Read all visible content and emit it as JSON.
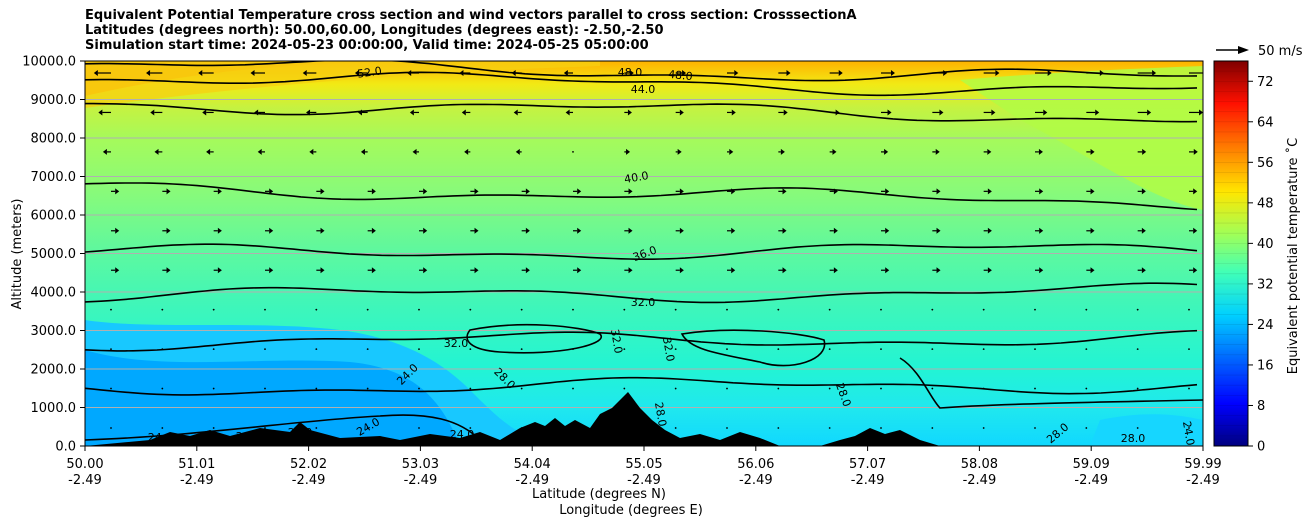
{
  "title": {
    "line1": "Equivalent Potential Temperature cross section and wind vectors parallel to cross section: CrosssectionA",
    "line2": "Latitudes (degrees north): 50.00,60.00, Longitudes (degrees east): -2.50,-2.50",
    "line3": "Simulation start time: 2024-05-23 00:00:00, Valid time: 2024-05-25 05:00:00"
  },
  "chart_data": {
    "type": "heatmap",
    "ylabel": "Altitude (meters)",
    "xlabel_lat": "Latitude (degrees N)",
    "xlabel_lon": "Longitude (degrees E)",
    "ylim": [
      0,
      10000
    ],
    "y_ticks": [
      "0.0",
      "1000.0",
      "2000.0",
      "3000.0",
      "4000.0",
      "5000.0",
      "6000.0",
      "7000.0",
      "8000.0",
      "9000.0",
      "10000.0"
    ],
    "x_ticks_lat": [
      "50.00",
      "51.01",
      "52.02",
      "53.03",
      "54.04",
      "55.05",
      "56.06",
      "57.07",
      "58.08",
      "59.09",
      "59.99"
    ],
    "x_ticks_lon": [
      "-2.49",
      "-2.49",
      "-2.49",
      "-2.49",
      "-2.49",
      "-2.49",
      "-2.49",
      "-2.49",
      "-2.49",
      "-2.49",
      "-2.49"
    ],
    "grid": "horizontal",
    "colorbar": {
      "label": "Equivalent potential temperature ˚C",
      "ticks": [
        "0",
        "8",
        "16",
        "24",
        "32",
        "40",
        "48",
        "56",
        "64",
        "72"
      ],
      "range": [
        0,
        76
      ],
      "colormap": "jet"
    },
    "quiver_key": "50 m/s",
    "contour_levels": [
      {
        "value": 24,
        "label": "24.0",
        "altitude_m": 1500
      },
      {
        "value": 28,
        "label": "28.0",
        "altitude_m": 2700
      },
      {
        "value": 32,
        "label": "32.0",
        "altitude_m": 3900
      },
      {
        "value": 36,
        "label": "36.0",
        "altitude_m": 5000
      },
      {
        "value": 40,
        "label": "40.0",
        "altitude_m": 6700
      },
      {
        "value": 44,
        "label": "44.0",
        "altitude_m": 8900
      },
      {
        "value": 48,
        "label": "48.0",
        "altitude_m": 9600
      },
      {
        "value": 52,
        "label": "52.0",
        "altitude_m": 9900
      }
    ],
    "inline_labels": [
      "52.0",
      "48.0",
      "48.0",
      "44.0",
      "40.0",
      "36.0",
      "32.0",
      "32.0",
      "32.0",
      "32.0",
      "28.0",
      "28.0",
      "28.0",
      "28.0",
      "28.0",
      "24.0",
      "24.0",
      "24.0",
      "24.0",
      "24.0",
      "24.0",
      "24.0"
    ]
  }
}
